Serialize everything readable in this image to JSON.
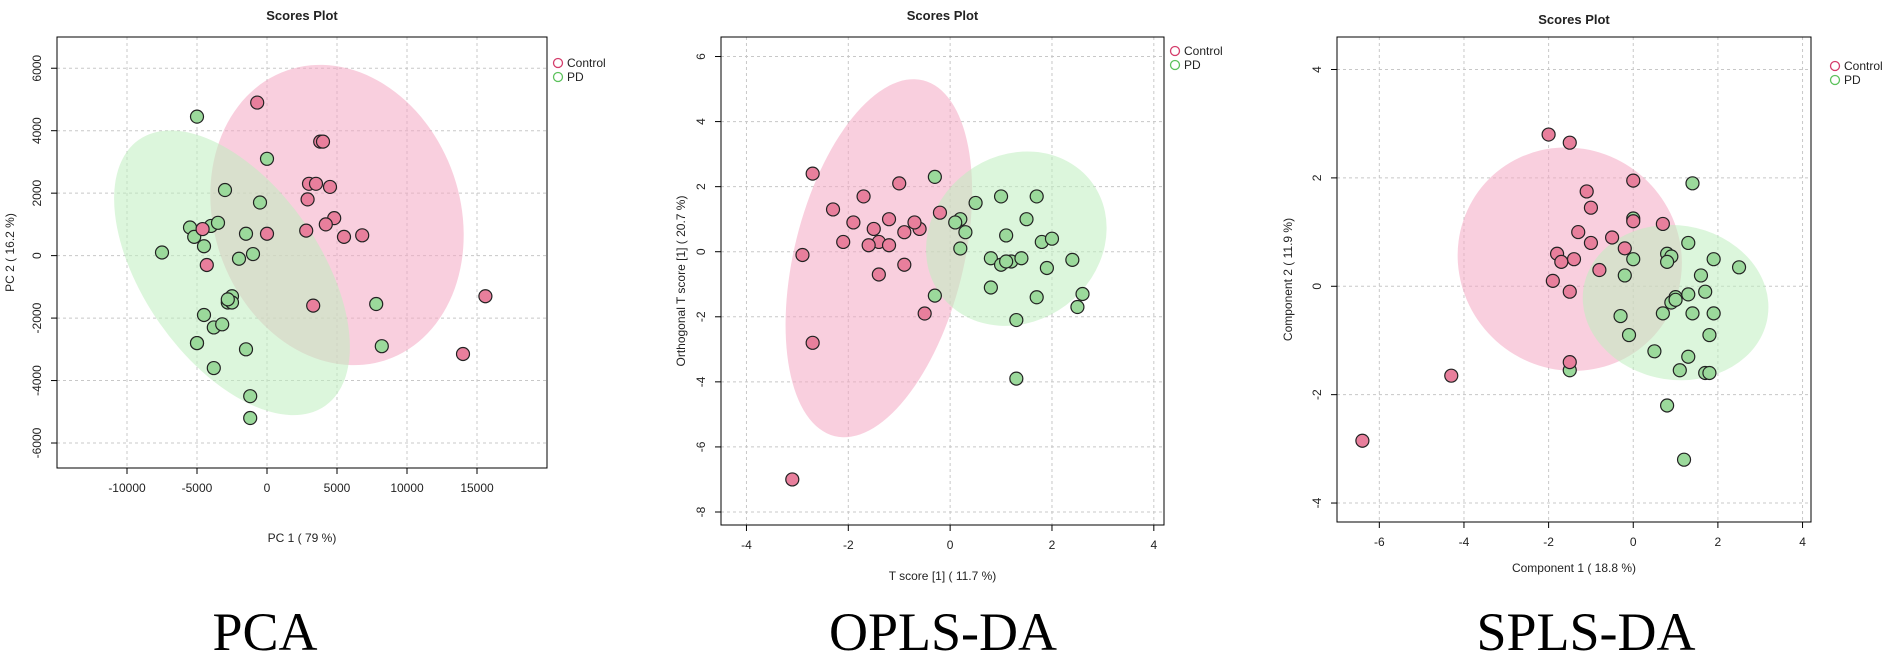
{
  "colors": {
    "control_point": "#e87f9c",
    "pd_point": "#9bd99b",
    "control_ellipse": "#f4a7c3",
    "pd_ellipse": "#bfeebf",
    "point_stroke": "#222222",
    "grid": "#c8c8c8"
  },
  "chart_data": [
    {
      "type": "scatter",
      "title": "Scores Plot",
      "caption": "PCA",
      "xlabel": "PC 1 ( 79 %)",
      "ylabel": "PC 2 ( 16.2 %)",
      "xlim": [
        -15000,
        20000
      ],
      "ylim": [
        -6800,
        7000
      ],
      "xticks": [
        -10000,
        -5000,
        0,
        5000,
        10000,
        15000
      ],
      "yticks": [
        -6000,
        -4000,
        -2000,
        0,
        2000,
        4000,
        6000
      ],
      "legend_position": "top-right",
      "legend": [
        "Control",
        "PD"
      ],
      "ellipses": [
        {
          "group": "Control",
          "cx": 5000,
          "cy": 1300,
          "rx": 17600,
          "ry": 4900,
          "angle_deg": -19
        },
        {
          "group": "PD",
          "cx": -2500,
          "cy": -550,
          "rx": 12600,
          "ry": 5200,
          "angle_deg": -35
        }
      ],
      "series": [
        {
          "name": "PD",
          "x": [
            -5000,
            -7500,
            -5500,
            -5200,
            -4500,
            -4000,
            -3500,
            -3000,
            -2800,
            -2500,
            -2000,
            -1500,
            -1000,
            -500,
            0,
            -5000,
            -3800,
            -2500,
            -2800,
            -3200,
            -4500,
            -1500,
            -5000,
            -3800,
            -1200,
            -1200,
            7800,
            8200
          ],
          "y": [
            4450,
            100,
            900,
            600,
            300,
            950,
            1050,
            2100,
            -1500,
            -1300,
            -100,
            700,
            50,
            1700,
            3100,
            -2800,
            -2300,
            -1500,
            -1400,
            -2200,
            -1900,
            -3000,
            -2800,
            -3600,
            -4500,
            -5200,
            -1550,
            -2900
          ]
        },
        {
          "name": "Control",
          "x": [
            -700,
            -4600,
            -4300,
            0,
            3000,
            2900,
            3800,
            4000,
            3500,
            4500,
            4800,
            4200,
            5500,
            6800,
            2800,
            3300,
            14000,
            15600
          ],
          "y": [
            4900,
            850,
            -300,
            700,
            2300,
            1800,
            3650,
            3650,
            2300,
            2200,
            1200,
            1000,
            600,
            650,
            800,
            -1600,
            -3150,
            -1300
          ]
        }
      ]
    },
    {
      "type": "scatter",
      "title": "Scores Plot",
      "caption": "OPLS-DA",
      "xlabel": "T score [1] ( 11.7 %)",
      "ylabel": "Orthogonal T score [1] ( 20.7 %)",
      "xlim": [
        -4.5,
        4.2
      ],
      "ylim": [
        -8.4,
        6.6
      ],
      "xticks": [
        -4,
        -2,
        0,
        2,
        4
      ],
      "yticks": [
        -8,
        -6,
        -4,
        -2,
        0,
        2,
        4,
        6
      ],
      "legend_position": "top-right",
      "legend": [
        "Control",
        "PD"
      ],
      "ellipses": [
        {
          "group": "Control",
          "cx": -1.4,
          "cy": -0.2,
          "rx": 7.2,
          "ry": 2.6,
          "angle_deg": -76
        },
        {
          "group": "PD",
          "cx": 1.3,
          "cy": 0.4,
          "rx": 3.7,
          "ry": 2.55,
          "angle_deg": -37
        }
      ],
      "series": [
        {
          "name": "PD",
          "x": [
            -0.3,
            0.5,
            0.8,
            1.0,
            1.1,
            1.2,
            1.5,
            1.7,
            1.8,
            1.9,
            2.0,
            1.3,
            1.7,
            2.5,
            2.6,
            1.0,
            1.4,
            0.8,
            1.1,
            0.2,
            0.1,
            0.3,
            -0.3,
            1.3,
            2.4,
            0.2
          ],
          "y": [
            2.3,
            1.5,
            -0.2,
            1.7,
            0.5,
            -0.3,
            1.0,
            1.7,
            0.3,
            -0.5,
            0.4,
            -2.1,
            -1.4,
            -1.7,
            -1.3,
            -0.4,
            -0.2,
            -1.1,
            -0.3,
            1.0,
            0.9,
            0.6,
            -1.35,
            -3.9,
            -0.25,
            0.1
          ]
        },
        {
          "name": "Control",
          "x": [
            -2.7,
            -2.3,
            -2.1,
            -1.7,
            -1.5,
            -1.4,
            -1.2,
            -1.0,
            -0.9,
            -0.6,
            -0.2,
            -0.7,
            -1.2,
            -1.6,
            -1.9,
            -0.5,
            -2.9,
            -1.4,
            -0.9,
            -2.7,
            -3.1
          ],
          "y": [
            2.4,
            1.3,
            0.3,
            1.7,
            0.7,
            0.3,
            1.0,
            2.1,
            0.6,
            0.7,
            1.2,
            0.9,
            0.2,
            0.2,
            0.9,
            -1.9,
            -0.1,
            -0.7,
            -0.4,
            -2.8,
            -7.0
          ]
        }
      ]
    },
    {
      "type": "scatter",
      "title": "Scores Plot",
      "caption": "SPLS-DA",
      "xlabel": "Component 1 ( 18.8 %)",
      "ylabel": "Component 2 ( 11.9 %)",
      "xlim": [
        -7.0,
        4.2
      ],
      "ylim": [
        -4.35,
        4.6
      ],
      "xticks": [
        -6,
        -4,
        -2,
        0,
        2,
        4
      ],
      "yticks": [
        -4,
        -2,
        0,
        2,
        4
      ],
      "legend_position": "top-right",
      "legend": [
        "Control",
        "PD"
      ],
      "ellipses": [
        {
          "group": "Control",
          "cx": -1.5,
          "cy": 0.5,
          "rx": 5.2,
          "ry": 2.1,
          "angle_deg": -48
        },
        {
          "group": "PD",
          "cx": 1.0,
          "cy": -0.3,
          "rx": 3.65,
          "ry": 1.72,
          "angle_deg": -81
        }
      ],
      "series": [
        {
          "name": "PD",
          "x": [
            1.4,
            0.0,
            1.3,
            0.8,
            0.9,
            1.6,
            1.9,
            1.3,
            1.0,
            0.9,
            1.7,
            1.4,
            1.9,
            2.5,
            -0.1,
            -0.3,
            0.7,
            1.0,
            1.3,
            1.7,
            1.8,
            0.8,
            1.2,
            -1.5,
            0.8,
            0.5,
            -0.2,
            0.0,
            1.1,
            1.8
          ],
          "y": [
            1.9,
            1.25,
            0.8,
            0.6,
            0.55,
            0.2,
            0.5,
            -0.15,
            -0.2,
            -0.3,
            -0.1,
            -0.5,
            -0.5,
            0.35,
            -0.9,
            -0.55,
            -0.5,
            -0.25,
            -1.3,
            -1.6,
            -1.6,
            -2.2,
            -3.2,
            -1.55,
            0.45,
            -1.2,
            0.2,
            0.5,
            -1.55,
            -0.9
          ]
        },
        {
          "name": "Control",
          "x": [
            -2.0,
            -1.5,
            -1.1,
            -1.3,
            -1.0,
            -0.5,
            -0.2,
            0.0,
            -1.4,
            -1.8,
            -1.7,
            -1.0,
            -0.8,
            -1.9,
            -1.5,
            -1.5,
            0.7,
            0.0,
            -4.3,
            -6.4
          ],
          "y": [
            2.8,
            2.65,
            1.75,
            1.0,
            1.45,
            0.9,
            0.7,
            1.95,
            0.5,
            0.6,
            0.45,
            0.8,
            0.3,
            0.1,
            -0.1,
            -1.4,
            1.15,
            1.2,
            -1.65,
            -2.85
          ]
        }
      ]
    }
  ]
}
